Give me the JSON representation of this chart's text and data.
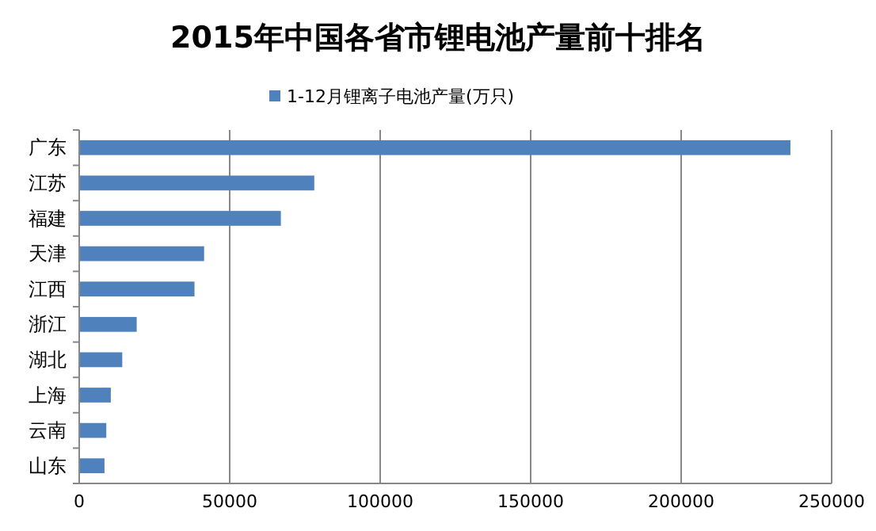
{
  "chart_data": {
    "type": "bar",
    "orientation": "horizontal",
    "title": "2015年中国各省市锂电池产量前十排名",
    "categories": [
      "广东",
      "江苏",
      "福建",
      "天津",
      "江西",
      "浙江",
      "湖北",
      "上海",
      "云南",
      "山东"
    ],
    "series": [
      {
        "name": "1-12月锂离子电池产量(万只)",
        "color": "#4f81bd",
        "values": [
          236300,
          78100,
          67000,
          41500,
          38300,
          19100,
          14300,
          10500,
          9000,
          8400
        ]
      }
    ],
    "xlim": [
      0,
      250000
    ],
    "xticks": [
      0,
      50000,
      100000,
      150000,
      200000,
      250000
    ],
    "grid": "x",
    "legend": "top"
  }
}
